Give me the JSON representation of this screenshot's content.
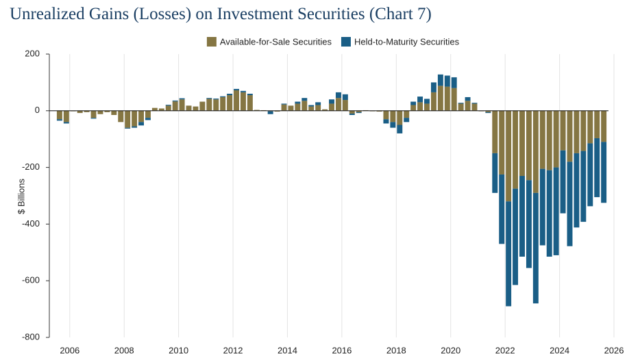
{
  "chart_data": {
    "type": "stacked_bar",
    "title": "Unrealized Gains (Losses) on Investment Securities (Chart 7)",
    "ylabel": "$ Billions",
    "x": [
      2005.625,
      2005.875,
      2006.125,
      2006.375,
      2006.625,
      2006.875,
      2007.125,
      2007.375,
      2007.625,
      2007.875,
      2008.125,
      2008.375,
      2008.625,
      2008.875,
      2009.125,
      2009.375,
      2009.625,
      2009.875,
      2010.125,
      2010.375,
      2010.625,
      2010.875,
      2011.125,
      2011.375,
      2011.625,
      2011.875,
      2012.125,
      2012.375,
      2012.625,
      2012.875,
      2013.125,
      2013.375,
      2013.625,
      2013.875,
      2014.125,
      2014.375,
      2014.625,
      2014.875,
      2015.125,
      2015.375,
      2015.625,
      2015.875,
      2016.125,
      2016.375,
      2016.625,
      2016.875,
      2017.125,
      2017.375,
      2017.625,
      2017.875,
      2018.125,
      2018.375,
      2018.625,
      2018.875,
      2019.125,
      2019.375,
      2019.625,
      2019.875,
      2020.125,
      2020.375,
      2020.625,
      2020.875,
      2021.125,
      2021.375,
      2021.625,
      2021.875,
      2022.125,
      2022.375,
      2022.625,
      2022.875,
      2023.125,
      2023.375,
      2023.625,
      2023.875,
      2024.125,
      2024.375,
      2024.625,
      2024.875,
      2025.125,
      2025.375,
      2025.625
    ],
    "series": [
      {
        "name": "Available-for-Sale Securities",
        "color": "#857643",
        "values": [
          -30,
          -40,
          -2,
          -8,
          -5,
          -25,
          -12,
          -5,
          -15,
          -40,
          -60,
          -55,
          -40,
          -25,
          10,
          8,
          18,
          33,
          40,
          18,
          15,
          32,
          42,
          40,
          48,
          55,
          72,
          65,
          55,
          3,
          2,
          -2,
          -3,
          22,
          18,
          25,
          35,
          15,
          20,
          5,
          25,
          45,
          38,
          -10,
          -5,
          2,
          -2,
          -3,
          -30,
          -40,
          -50,
          -25,
          20,
          30,
          25,
          65,
          88,
          85,
          80,
          25,
          35,
          25,
          -2,
          -5,
          -150,
          -225,
          -320,
          -275,
          -230,
          -245,
          -290,
          -205,
          -210,
          -200,
          -140,
          -180,
          -150,
          -142,
          -115,
          -97,
          -110
        ]
      },
      {
        "name": "Held-to-Maturity Securities",
        "color": "#1a5e86",
        "values": [
          -5,
          -5,
          0,
          0,
          0,
          -3,
          0,
          0,
          0,
          0,
          -3,
          -5,
          -12,
          -8,
          0,
          0,
          3,
          3,
          4,
          0,
          0,
          0,
          3,
          3,
          3,
          5,
          5,
          5,
          5,
          0,
          0,
          -10,
          0,
          3,
          0,
          7,
          10,
          5,
          10,
          0,
          15,
          20,
          20,
          -5,
          -3,
          0,
          0,
          0,
          -15,
          -20,
          -30,
          -15,
          12,
          20,
          17,
          35,
          40,
          39,
          38,
          3,
          13,
          3,
          0,
          -3,
          -140,
          -245,
          -370,
          -340,
          -285,
          -310,
          -390,
          -270,
          -305,
          -310,
          -222,
          -298,
          -262,
          -250,
          -222,
          -208,
          -215
        ]
      }
    ],
    "xlim": [
      2005.25,
      2026.1
    ],
    "xticks": [
      2006,
      2008,
      2010,
      2012,
      2014,
      2016,
      2018,
      2020,
      2022,
      2024,
      2026
    ],
    "ylim": [
      -800,
      200
    ],
    "yticks": [
      200,
      0,
      -200,
      -400,
      -600,
      -800
    ],
    "grid": true,
    "legend": "top"
  }
}
